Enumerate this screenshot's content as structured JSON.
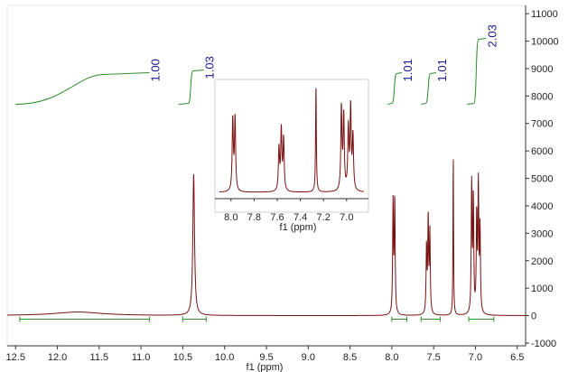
{
  "chart_data": {
    "type": "line",
    "main": {
      "xlabel": "f1 (ppm)",
      "xlim": [
        12.6,
        6.4
      ],
      "ylim": [
        -1100,
        11300
      ],
      "xticks": [
        "12.5",
        "12.0",
        "11.5",
        "11.0",
        "10.5",
        "10.0",
        "9.5",
        "9.0",
        "8.5",
        "8.0",
        "7.5",
        "7.0",
        "6.5"
      ],
      "xtick_values": [
        12.5,
        12.0,
        11.5,
        11.0,
        10.5,
        10.0,
        9.5,
        9.0,
        8.5,
        8.0,
        7.5,
        7.0,
        6.5
      ],
      "yticks": [
        "-1000",
        "0",
        "1000",
        "2000",
        "3000",
        "4000",
        "5000",
        "6000",
        "7000",
        "8000",
        "9000",
        "10000",
        "11000"
      ],
      "ytick_values": [
        -1000,
        0,
        1000,
        2000,
        3000,
        4000,
        5000,
        6000,
        7000,
        8000,
        9000,
        10000,
        11000
      ],
      "peaks": [
        {
          "x": 11.75,
          "height": 130,
          "width": 0.35
        },
        {
          "x": 10.37,
          "height": 5150,
          "width": 0.012
        },
        {
          "x": 7.985,
          "height": 4050,
          "width": 0.006
        },
        {
          "x": 7.965,
          "height": 4150,
          "width": 0.006
        },
        {
          "x": 7.585,
          "height": 2400,
          "width": 0.006
        },
        {
          "x": 7.565,
          "height": 3450,
          "width": 0.006
        },
        {
          "x": 7.545,
          "height": 2950,
          "width": 0.006
        },
        {
          "x": 7.265,
          "height": 5950,
          "width": 0.004
        },
        {
          "x": 7.045,
          "height": 4700,
          "width": 0.006
        },
        {
          "x": 7.025,
          "height": 4200,
          "width": 0.006
        },
        {
          "x": 6.985,
          "height": 3500,
          "width": 0.006
        },
        {
          "x": 6.965,
          "height": 4650,
          "width": 0.006
        },
        {
          "x": 6.945,
          "height": 3050,
          "width": 0.006
        }
      ],
      "integrals": [
        {
          "label": "1.00",
          "from": 12.5,
          "to": 10.9,
          "y_start": 7700,
          "y_end": 8850,
          "curve": "broad"
        },
        {
          "label": "1.03",
          "from": 10.55,
          "to": 10.25,
          "y_start": 7700,
          "y_end": 8950,
          "curve": "step"
        },
        {
          "label": "1.01",
          "from": 8.05,
          "to": 7.88,
          "y_start": 7700,
          "y_end": 8850,
          "curve": "step"
        },
        {
          "label": "1.01",
          "from": 7.65,
          "to": 7.47,
          "y_start": 7700,
          "y_end": 8850,
          "curve": "step"
        },
        {
          "label": "2.03",
          "from": 7.1,
          "to": 6.87,
          "y_start": 7700,
          "y_end": 10100,
          "curve": "step"
        }
      ],
      "integral_baseline_segments": [
        [
          12.45,
          10.9
        ],
        [
          10.5,
          10.22
        ],
        [
          8.0,
          7.82
        ],
        [
          7.65,
          7.42
        ],
        [
          7.08,
          6.78
        ]
      ]
    },
    "inset": {
      "xlabel": "f1 (ppm)",
      "xlim": [
        8.1,
        6.85
      ],
      "xticks": [
        "8.0",
        "7.8",
        "7.6",
        "7.4",
        "7.2",
        "7.0"
      ],
      "xtick_values": [
        8.0,
        7.8,
        7.6,
        7.4,
        7.2,
        7.0
      ]
    },
    "colors": {
      "spectrum": "#7a1010",
      "integral": "#2e8b2e",
      "integral_label": "#1a1a8c",
      "axis": "#333333"
    }
  }
}
